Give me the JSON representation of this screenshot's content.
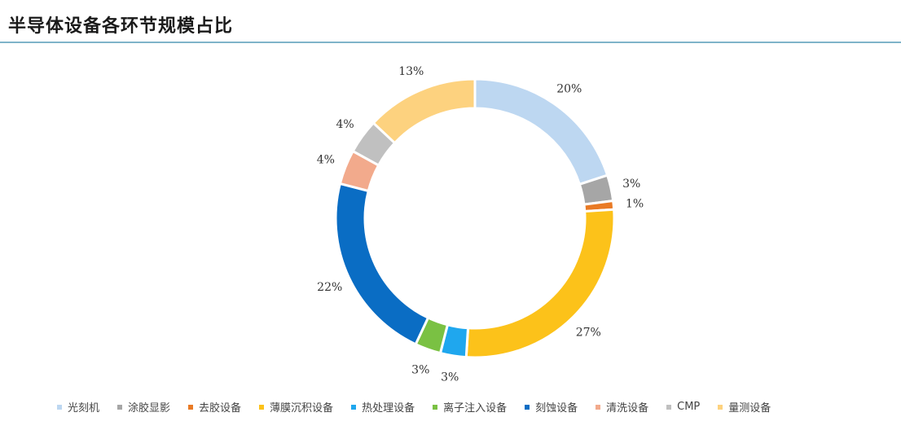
{
  "header": {
    "title": "半导体设备各环节规模占比"
  },
  "chart_data": {
    "type": "pie",
    "style": "donut",
    "title": "半导体设备各环节规模占比",
    "legend_position": "bottom",
    "categories": [
      "光刻机",
      "涂胶显影",
      "去胶设备",
      "薄膜沉积设备",
      "热处理设备",
      "离子注入设备",
      "刻蚀设备",
      "清洗设备",
      "CMP",
      "量测设备"
    ],
    "values": [
      20,
      3,
      1,
      27,
      3,
      3,
      22,
      4,
      4,
      13
    ],
    "labels": [
      "20%",
      "3%",
      "1%",
      "27%",
      "3%",
      "3%",
      "22%",
      "4%",
      "4%",
      "13%"
    ],
    "colors": [
      "#bdd7f1",
      "#a6a6a6",
      "#e97a25",
      "#fcc21a",
      "#1fa7ee",
      "#7ac143",
      "#0a6dc4",
      "#f2aa8c",
      "#c0c0c0",
      "#fdd27f"
    ]
  }
}
